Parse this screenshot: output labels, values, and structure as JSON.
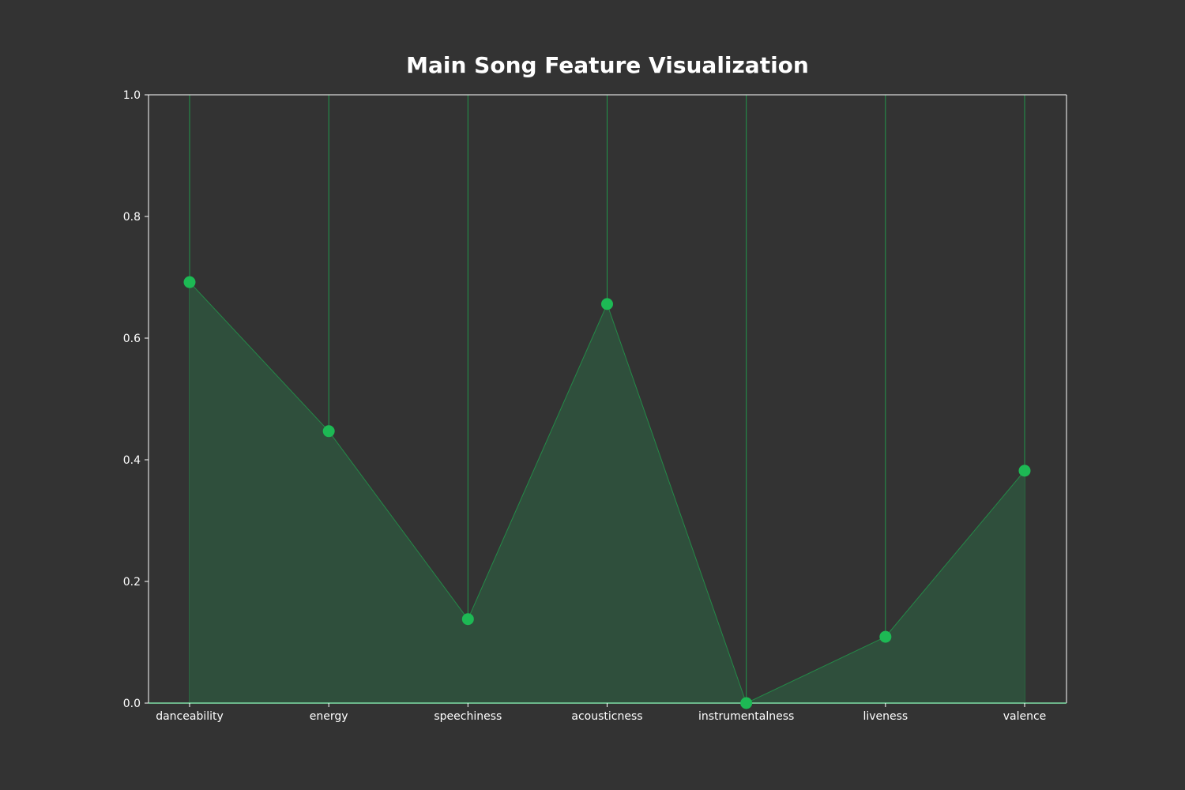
{
  "chart_data": {
    "type": "area",
    "title": "Main Song Feature Visualization",
    "xlabel": "",
    "ylabel": "",
    "categories": [
      "danceability",
      "energy",
      "speechiness",
      "acousticness",
      "instrumentalness",
      "liveness",
      "valence"
    ],
    "series": [
      {
        "values": [
          0.692,
          0.447,
          0.138,
          0.656,
          0.0,
          0.109,
          0.382
        ]
      }
    ],
    "ylim": [
      0.0,
      1.0
    ],
    "yticks": [
      "0.0",
      "0.2",
      "0.4",
      "0.6",
      "0.8",
      "1.0"
    ],
    "grid": "vertical",
    "legend": "none"
  },
  "colors": {
    "background": "#333333",
    "accent": "#1DB954",
    "fill": "#2F4F3C",
    "axis": "#ffffff",
    "text": "#ffffff"
  }
}
